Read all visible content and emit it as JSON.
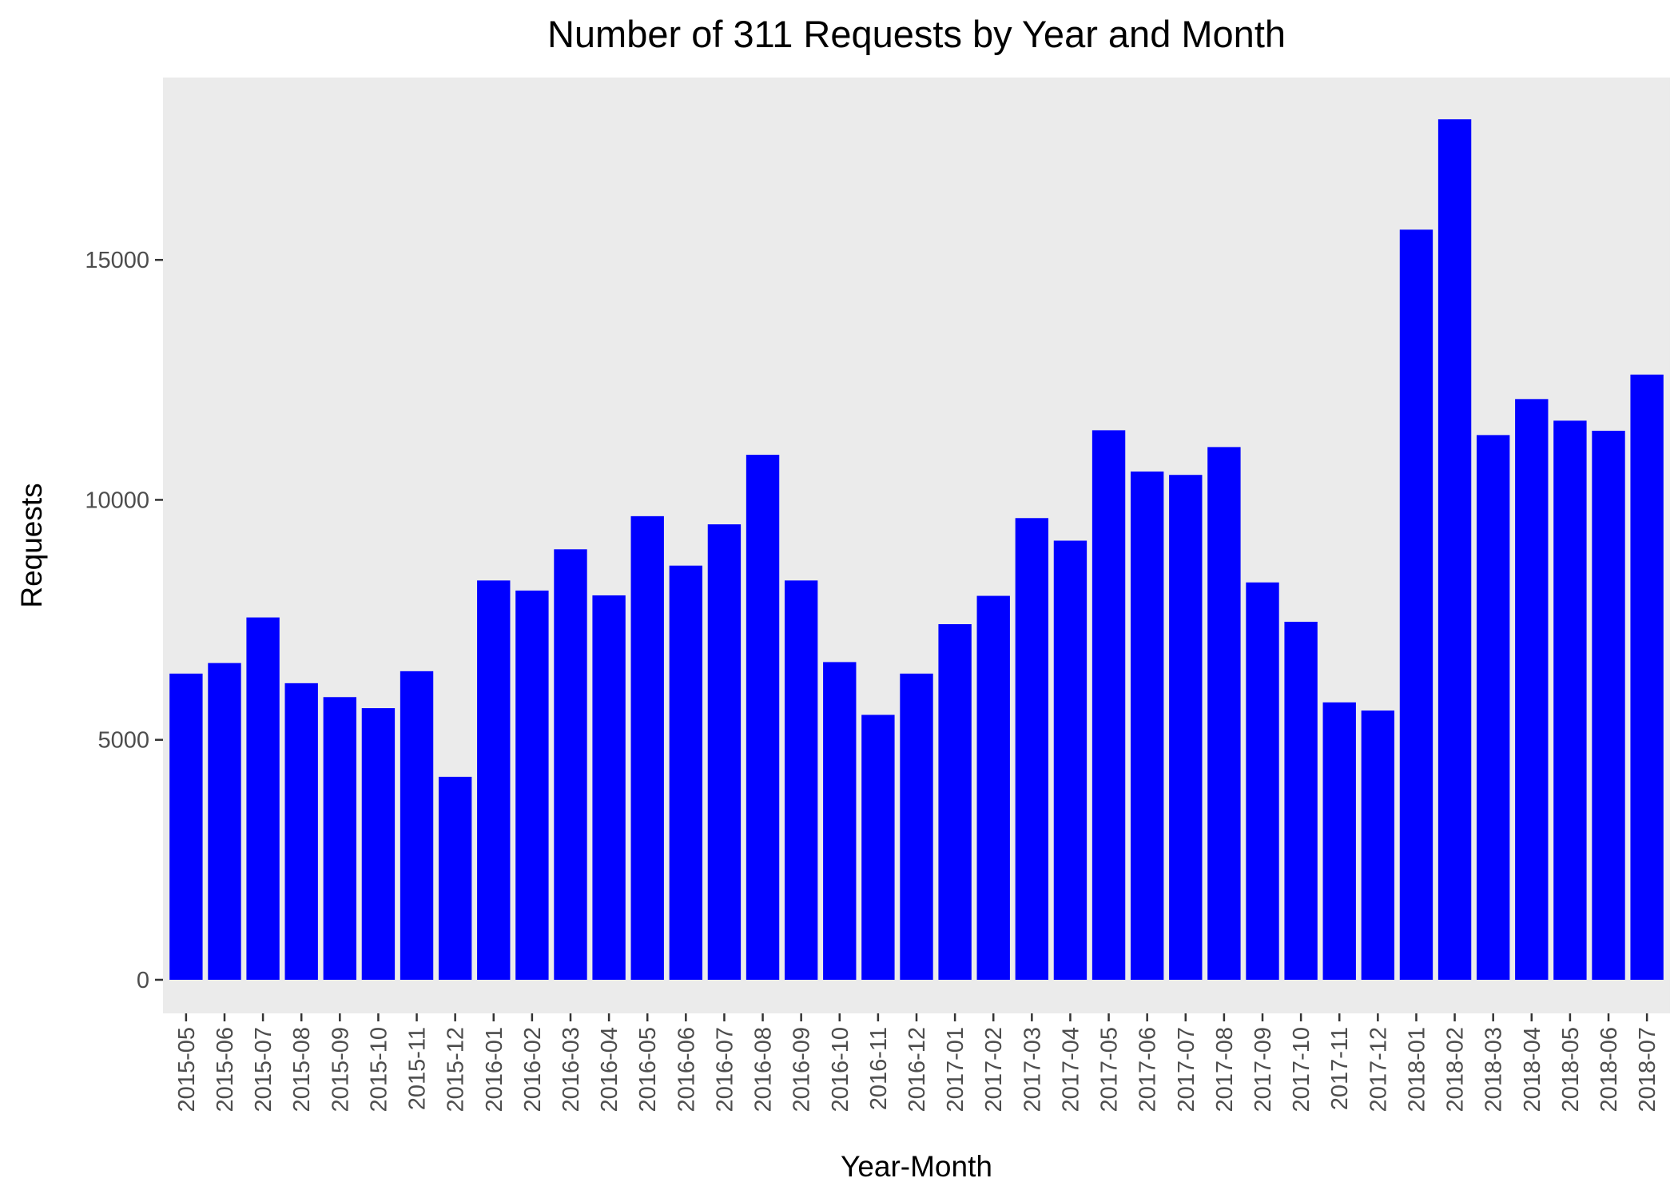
{
  "chart_data": {
    "type": "bar",
    "title": "Number of 311 Requests by Year and Month",
    "xlabel": "Year-Month",
    "ylabel": "Requests",
    "ylim": [
      -700,
      18800
    ],
    "yticks": [
      0,
      5000,
      10000,
      15000
    ],
    "grid": false,
    "colors": {
      "bar": "#0000ff",
      "panel": "#ebebeb",
      "tick_text": "#4d4d4d",
      "tick_mark": "#333333"
    },
    "categories": [
      "2015-05",
      "2015-06",
      "2015-07",
      "2015-08",
      "2015-09",
      "2015-10",
      "2015-11",
      "2015-12",
      "2016-01",
      "2016-02",
      "2016-03",
      "2016-04",
      "2016-05",
      "2016-06",
      "2016-07",
      "2016-08",
      "2016-09",
      "2016-10",
      "2016-11",
      "2016-12",
      "2017-01",
      "2017-02",
      "2017-03",
      "2017-04",
      "2017-05",
      "2017-06",
      "2017-07",
      "2017-08",
      "2017-09",
      "2017-10",
      "2017-11",
      "2017-12",
      "2018-01",
      "2018-02",
      "2018-03",
      "2018-04",
      "2018-05",
      "2018-06",
      "2018-07"
    ],
    "values": [
      6380,
      6600,
      7550,
      6180,
      5890,
      5660,
      6430,
      4230,
      8320,
      8110,
      8970,
      8010,
      9660,
      8630,
      9490,
      10940,
      8320,
      6620,
      5520,
      6380,
      7410,
      8000,
      9620,
      9150,
      11450,
      10590,
      10520,
      11100,
      8280,
      7460,
      5780,
      5610,
      15630,
      17930,
      11350,
      12100,
      11650,
      11440,
      12610
    ]
  }
}
